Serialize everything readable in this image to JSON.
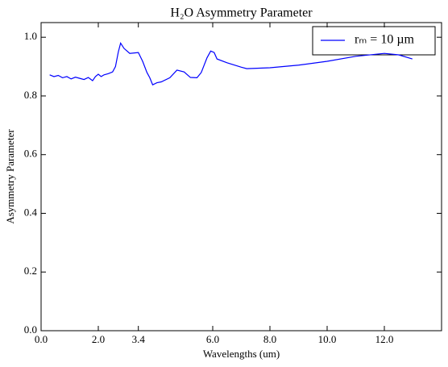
{
  "chart_data": {
    "type": "line",
    "title": "H₂O Asymmetry Parameter",
    "x_label": "Wavelengths (um)",
    "y_label": "Asymmetry Parameter",
    "xlim": [
      0,
      14
    ],
    "ylim": [
      0,
      1.05
    ],
    "xticks": [
      {
        "value": 0,
        "label": "0.0"
      },
      {
        "value": 2,
        "label": "2.0"
      },
      {
        "value": 3.4,
        "label": "3.4"
      },
      {
        "value": 6,
        "label": "6.0"
      },
      {
        "value": 8,
        "label": "8.0"
      },
      {
        "value": 10,
        "label": "10.0"
      },
      {
        "value": 12,
        "label": "12.0"
      }
    ],
    "yticks": [
      {
        "value": 0,
        "label": "0.0"
      },
      {
        "value": 0.2,
        "label": "0.2"
      },
      {
        "value": 0.4,
        "label": "0.4"
      },
      {
        "value": 0.6,
        "label": "0.6"
      },
      {
        "value": 0.8,
        "label": "0.8"
      },
      {
        "value": 1,
        "label": "1.0"
      }
    ],
    "legend": "upper right",
    "x": [
      0.3,
      0.45,
      0.6,
      0.75,
      0.9,
      1.05,
      1.2,
      1.35,
      1.5,
      1.65,
      1.8,
      1.9,
      2.0,
      2.1,
      2.2,
      2.35,
      2.5,
      2.6,
      2.7,
      2.78,
      2.9,
      3.1,
      3.4,
      3.55,
      3.7,
      3.8,
      3.9,
      4.05,
      4.2,
      4.5,
      4.75,
      5.0,
      5.22,
      5.45,
      5.6,
      5.8,
      5.93,
      6.05,
      6.15,
      6.5,
      7.0,
      7.19,
      8.0,
      9.0,
      10.0,
      11.0,
      12.0,
      12.5,
      12.98
    ],
    "series": [
      {
        "name": "rₘ = 10 µm",
        "color": "#0000ff",
        "values": [
          0.872,
          0.866,
          0.87,
          0.862,
          0.866,
          0.858,
          0.864,
          0.86,
          0.856,
          0.863,
          0.852,
          0.866,
          0.874,
          0.866,
          0.872,
          0.876,
          0.882,
          0.9,
          0.95,
          0.98,
          0.962,
          0.945,
          0.948,
          0.918,
          0.88,
          0.862,
          0.838,
          0.845,
          0.848,
          0.862,
          0.888,
          0.882,
          0.863,
          0.862,
          0.88,
          0.93,
          0.953,
          0.948,
          0.926,
          0.913,
          0.898,
          0.893,
          0.896,
          0.905,
          0.918,
          0.935,
          0.945,
          0.94,
          0.926
        ]
      }
    ]
  }
}
